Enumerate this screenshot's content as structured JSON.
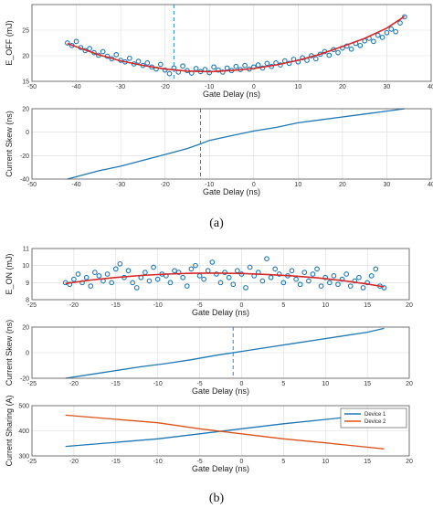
{
  "chart_data": [
    {
      "type": "scatter",
      "panel": "a",
      "xlabel": "Gate Delay (ns)",
      "ylabel": "E_OFF (mJ)",
      "xlim": [
        -50,
        40
      ],
      "ylim": [
        15,
        30
      ],
      "xticks": [
        -50,
        -40,
        -30,
        -20,
        -10,
        0,
        10,
        20,
        30,
        40
      ],
      "yticks": [
        15,
        20,
        25
      ],
      "grid": true,
      "vline_x": -18,
      "series": [
        {
          "kind": "markers",
          "color": "#1f77b4",
          "x": [
            -42,
            -41,
            -40,
            -39,
            -38,
            -37,
            -36,
            -35,
            -34,
            -33,
            -32,
            -31,
            -30,
            -29,
            -28,
            -27,
            -26,
            -25,
            -24,
            -23,
            -22,
            -21,
            -20,
            -19,
            -18,
            -17,
            -16,
            -15,
            -14,
            -13,
            -12,
            -11,
            -10,
            -9,
            -8,
            -7,
            -6,
            -5,
            -4,
            -3,
            -2,
            -1,
            0,
            1,
            2,
            3,
            4,
            5,
            6,
            7,
            8,
            9,
            10,
            11,
            12,
            13,
            14,
            15,
            16,
            17,
            18,
            19,
            20,
            21,
            22,
            23,
            24,
            25,
            26,
            27,
            28,
            29,
            30,
            31,
            32,
            33,
            34
          ],
          "y": [
            22.5,
            22.0,
            22.8,
            21.6,
            21.0,
            21.4,
            20.6,
            20.1,
            20.8,
            19.9,
            19.4,
            20.2,
            19.1,
            18.8,
            19.5,
            18.4,
            18.9,
            18.1,
            18.6,
            17.8,
            17.4,
            18.3,
            17.2,
            16.5,
            17.6,
            16.8,
            18.0,
            17.1,
            16.6,
            17.5,
            16.9,
            17.3,
            16.7,
            17.8,
            17.2,
            16.8,
            17.6,
            17.1,
            17.9,
            17.3,
            18.1,
            17.4,
            17.8,
            18.2,
            17.6,
            18.5,
            17.9,
            18.6,
            18.2,
            19.0,
            18.5,
            19.3,
            18.8,
            19.6,
            19.1,
            20.0,
            19.4,
            20.3,
            20.8,
            20.1,
            21.2,
            20.6,
            21.5,
            21.9,
            21.3,
            22.4,
            22.0,
            22.9,
            23.4,
            22.8,
            24.0,
            23.6,
            24.5,
            25.2,
            24.7,
            26.4,
            27.6
          ]
        },
        {
          "kind": "fit",
          "color": "#d62728",
          "x": [
            -42,
            -35,
            -30,
            -25,
            -20,
            -15,
            -10,
            -5,
            0,
            5,
            10,
            15,
            20,
            25,
            30,
            34
          ],
          "y": [
            22.4,
            20.2,
            19.0,
            18.1,
            17.4,
            17.0,
            16.9,
            17.1,
            17.5,
            18.2,
            19.1,
            20.3,
            21.8,
            23.4,
            25.4,
            27.7
          ]
        }
      ]
    },
    {
      "type": "line",
      "panel": "a",
      "xlabel": "Gate Delay (ns)",
      "ylabel": "Current Skew (ns)",
      "xlim": [
        -50,
        40
      ],
      "ylim": [
        -40,
        20
      ],
      "xticks": [
        -50,
        -40,
        -30,
        -20,
        -10,
        0,
        10,
        20,
        30,
        40
      ],
      "yticks": [
        -40,
        -20,
        0,
        20
      ],
      "grid": true,
      "vline_x": -12,
      "series": [
        {
          "color": "#1f77b4",
          "x": [
            -42,
            -35,
            -30,
            -25,
            -20,
            -15,
            -12,
            -10,
            -5,
            0,
            5,
            10,
            15,
            20,
            25,
            30,
            34
          ],
          "y": [
            -40,
            -33,
            -29,
            -24,
            -19,
            -14,
            -10,
            -7,
            -3,
            1,
            4,
            8,
            10.5,
            13,
            15.5,
            18,
            20
          ]
        }
      ]
    },
    {
      "type": "scatter",
      "panel": "b",
      "xlabel": "Gate Delay (ns)",
      "ylabel": "E_ON (mJ)",
      "xlim": [
        -25,
        20
      ],
      "ylim": [
        8,
        11
      ],
      "xticks": [
        -25,
        -20,
        -15,
        -10,
        -5,
        0,
        5,
        10,
        15,
        20
      ],
      "yticks": [
        8,
        9,
        10,
        11
      ],
      "grid": true,
      "series": [
        {
          "kind": "markers",
          "color": "#1f77b4",
          "x": [
            -21,
            -20.5,
            -20,
            -19.5,
            -19,
            -18.5,
            -18,
            -17.5,
            -17,
            -16.5,
            -16,
            -15.5,
            -15,
            -14.5,
            -14,
            -13.5,
            -13,
            -12.5,
            -12,
            -11.5,
            -11,
            -10.5,
            -10,
            -9.5,
            -9,
            -8.5,
            -8,
            -7.5,
            -7,
            -6.5,
            -6,
            -5.5,
            -5,
            -4.5,
            -4,
            -3.5,
            -3,
            -2.5,
            -2,
            -1.5,
            -1,
            -0.5,
            0,
            0.5,
            1,
            1.5,
            2,
            2.5,
            3,
            3.5,
            4,
            4.5,
            5,
            5.5,
            6,
            6.5,
            7,
            7.5,
            8,
            8.5,
            9,
            9.5,
            10,
            10.5,
            11,
            11.5,
            12,
            12.5,
            13,
            13.5,
            14,
            14.5,
            15,
            15.5,
            16,
            16.5,
            17
          ],
          "y": [
            9.0,
            8.9,
            9.2,
            9.5,
            9.0,
            9.3,
            8.8,
            9.6,
            9.4,
            9.1,
            9.5,
            9.0,
            9.8,
            10.1,
            9.3,
            9.7,
            9.0,
            8.7,
            9.3,
            9.6,
            9.1,
            9.9,
            9.2,
            9.5,
            9.4,
            9.0,
            9.7,
            9.6,
            9.3,
            8.8,
            9.8,
            10.0,
            9.4,
            9.2,
            9.7,
            10.2,
            9.5,
            9.0,
            9.6,
            9.3,
            8.9,
            9.7,
            9.5,
            8.7,
            9.9,
            9.4,
            9.6,
            9.1,
            10.4,
            9.3,
            9.8,
            9.5,
            9.0,
            9.4,
            9.7,
            9.2,
            8.9,
            9.6,
            9.1,
            9.5,
            9.8,
            8.8,
            9.3,
            9.0,
            9.4,
            8.9,
            9.2,
            9.5,
            8.8,
            9.1,
            9.3,
            8.7,
            9.0,
            9.4,
            9.8,
            8.8,
            8.7
          ]
        },
        {
          "kind": "fit",
          "color": "#d62728",
          "x": [
            -21,
            -18,
            -15,
            -12,
            -9,
            -6,
            -3,
            0,
            3,
            6,
            9,
            12,
            15,
            17
          ],
          "y": [
            8.95,
            9.15,
            9.3,
            9.42,
            9.5,
            9.55,
            9.56,
            9.54,
            9.48,
            9.4,
            9.28,
            9.12,
            8.92,
            8.75
          ]
        }
      ]
    },
    {
      "type": "line",
      "panel": "b",
      "xlabel": "Gate Delay (ns)",
      "ylabel": "Current Skew (ns)",
      "xlim": [
        -25,
        20
      ],
      "ylim": [
        -20,
        20
      ],
      "xticks": [
        -25,
        -20,
        -15,
        -10,
        -5,
        0,
        5,
        10,
        15,
        20
      ],
      "yticks": [
        -20,
        0,
        20
      ],
      "grid": true,
      "vline_x": -1,
      "series": [
        {
          "color": "#1f77b4",
          "x": [
            -21,
            -18,
            -15,
            -12,
            -9,
            -6,
            -3,
            0,
            3,
            6,
            9,
            12,
            15,
            17
          ],
          "y": [
            -20,
            -17,
            -14,
            -11,
            -8.5,
            -5.5,
            -2,
            1,
            4,
            7,
            10,
            13,
            16,
            19
          ]
        }
      ]
    },
    {
      "type": "line",
      "panel": "b",
      "xlabel": "Gate Delay (ns)",
      "ylabel": "Current Sharing (A)",
      "xlim": [
        -25,
        20
      ],
      "ylim": [
        300,
        500
      ],
      "xticks": [
        -25,
        -20,
        -15,
        -10,
        -5,
        0,
        5,
        10,
        15,
        20
      ],
      "yticks": [
        300,
        400,
        500
      ],
      "grid": true,
      "legend_position": "top-right",
      "series": [
        {
          "name": "Device 1",
          "color": "#1f77b4",
          "x": [
            -21,
            -15,
            -10,
            -5,
            0,
            5,
            10,
            17
          ],
          "y": [
            338,
            354,
            368,
            388,
            408,
            428,
            445,
            470
          ]
        },
        {
          "name": "Device 2",
          "color": "#d95319",
          "x": [
            -21,
            -15,
            -10,
            -5,
            0,
            5,
            10,
            17
          ],
          "y": [
            462,
            446,
            432,
            408,
            388,
            368,
            352,
            328
          ]
        }
      ]
    }
  ],
  "labels": {
    "caption_a": "(a)",
    "caption_b": "(b)"
  }
}
